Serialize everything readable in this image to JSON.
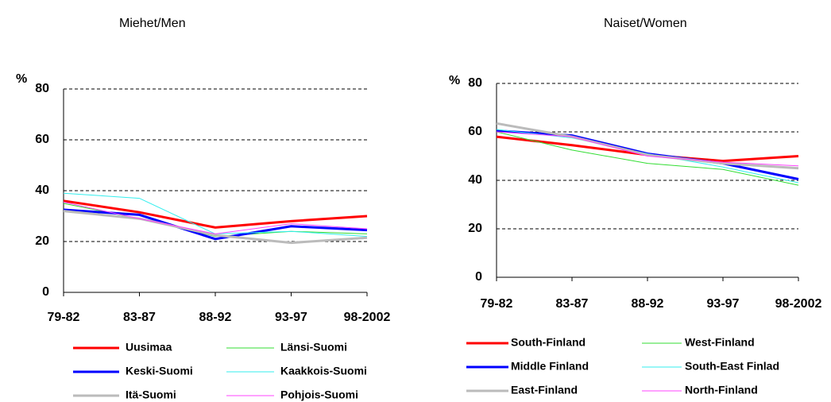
{
  "chart_data": [
    {
      "type": "line",
      "title": "Miehet/Men",
      "ylabel": "%",
      "categories": [
        "79-82",
        "83-87",
        "88-92",
        "93-97",
        "98-2002"
      ],
      "ylim": [
        0,
        80
      ],
      "yticks": [
        0,
        20,
        40,
        60,
        80
      ],
      "grid": true,
      "series": [
        {
          "name": "Uusimaa",
          "color": "#ff0000",
          "values": [
            36,
            31.5,
            25.5,
            28,
            30
          ]
        },
        {
          "name": "Länsi-Suomi",
          "color": "#33dd33",
          "values": [
            35,
            29,
            22,
            24,
            23
          ]
        },
        {
          "name": "Keski-Suomi",
          "color": "#0000ff",
          "values": [
            32.5,
            30.5,
            21,
            26,
            24.5
          ]
        },
        {
          "name": "Kaakkois-Suomi",
          "color": "#33eeee",
          "values": [
            39,
            37,
            23,
            24,
            22
          ]
        },
        {
          "name": "Itä-Suomi",
          "color": "#bbbbbb",
          "values": [
            32,
            29,
            22.5,
            19.5,
            21.5
          ]
        },
        {
          "name": "Pohjois-Suomi",
          "color": "#ff44ff",
          "values": [
            35.5,
            29,
            23,
            27,
            25
          ]
        }
      ]
    },
    {
      "type": "line",
      "title": "Naiset/Women",
      "ylabel": "%",
      "categories": [
        "79-82",
        "83-87",
        "88-92",
        "93-97",
        "98-2002"
      ],
      "ylim": [
        0,
        80
      ],
      "yticks": [
        0,
        20,
        40,
        60,
        80
      ],
      "grid": true,
      "series": [
        {
          "name": "South-Finland",
          "color": "#ff0000",
          "values": [
            58,
            54.5,
            50.5,
            48,
            50
          ]
        },
        {
          "name": "West-Finland",
          "color": "#33dd33",
          "values": [
            60,
            52.5,
            47,
            44.5,
            38
          ]
        },
        {
          "name": "Middle Finland",
          "color": "#0000ff",
          "values": [
            60.5,
            58.5,
            51,
            47,
            40.5
          ]
        },
        {
          "name": "South-East Finlad",
          "color": "#33eeee",
          "values": [
            61,
            57.5,
            51,
            45.5,
            39
          ]
        },
        {
          "name": "East-Finland",
          "color": "#bbbbbb",
          "values": [
            63.5,
            58,
            50.5,
            47,
            45
          ]
        },
        {
          "name": "North-Finland",
          "color": "#ff44ff",
          "values": [
            60,
            58,
            50,
            47.5,
            46
          ]
        }
      ]
    }
  ]
}
